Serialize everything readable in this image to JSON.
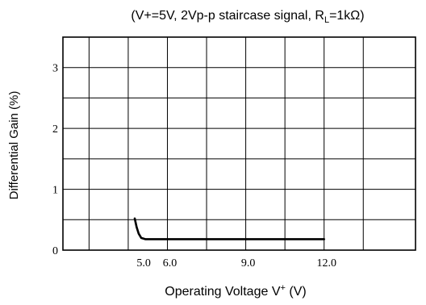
{
  "chart_data": {
    "type": "line",
    "title_parts": {
      "before": "(V+=5V, 2Vp-p staircase signal, R",
      "sub": "L",
      "after": "=1kΩ)"
    },
    "xlabel_parts": {
      "before": "Operating Voltage V",
      "sup": "+",
      "after": " (V)"
    },
    "ylabel": "Differential Gain (%)",
    "xlim": [
      2.0,
      15.5
    ],
    "ylim": [
      0,
      3.5
    ],
    "x_tick_labels": [
      {
        "x": 5.0,
        "label": "5.0"
      },
      {
        "x": 6.0,
        "label": "6.0"
      },
      {
        "x": 9.0,
        "label": "9.0"
      },
      {
        "x": 12.0,
        "label": "12.0"
      }
    ],
    "y_tick_labels": [
      {
        "y": 0,
        "label": "0"
      },
      {
        "y": 1,
        "label": "1"
      },
      {
        "y": 2,
        "label": "2"
      },
      {
        "y": 3,
        "label": "3"
      }
    ],
    "x_gridlines": [
      3.0,
      4.5,
      6.0,
      7.5,
      9.0,
      10.5,
      12.0,
      13.5
    ],
    "y_gridlines": [
      0.5,
      1,
      1.5,
      2,
      2.5,
      3
    ],
    "grid": true,
    "series": [
      {
        "x": [
          4.75,
          4.82,
          4.9,
          5.0,
          5.15,
          5.4,
          6.0,
          9.0,
          12.0
        ],
        "y": [
          0.52,
          0.38,
          0.27,
          0.2,
          0.18,
          0.18,
          0.18,
          0.18,
          0.18
        ]
      }
    ]
  }
}
